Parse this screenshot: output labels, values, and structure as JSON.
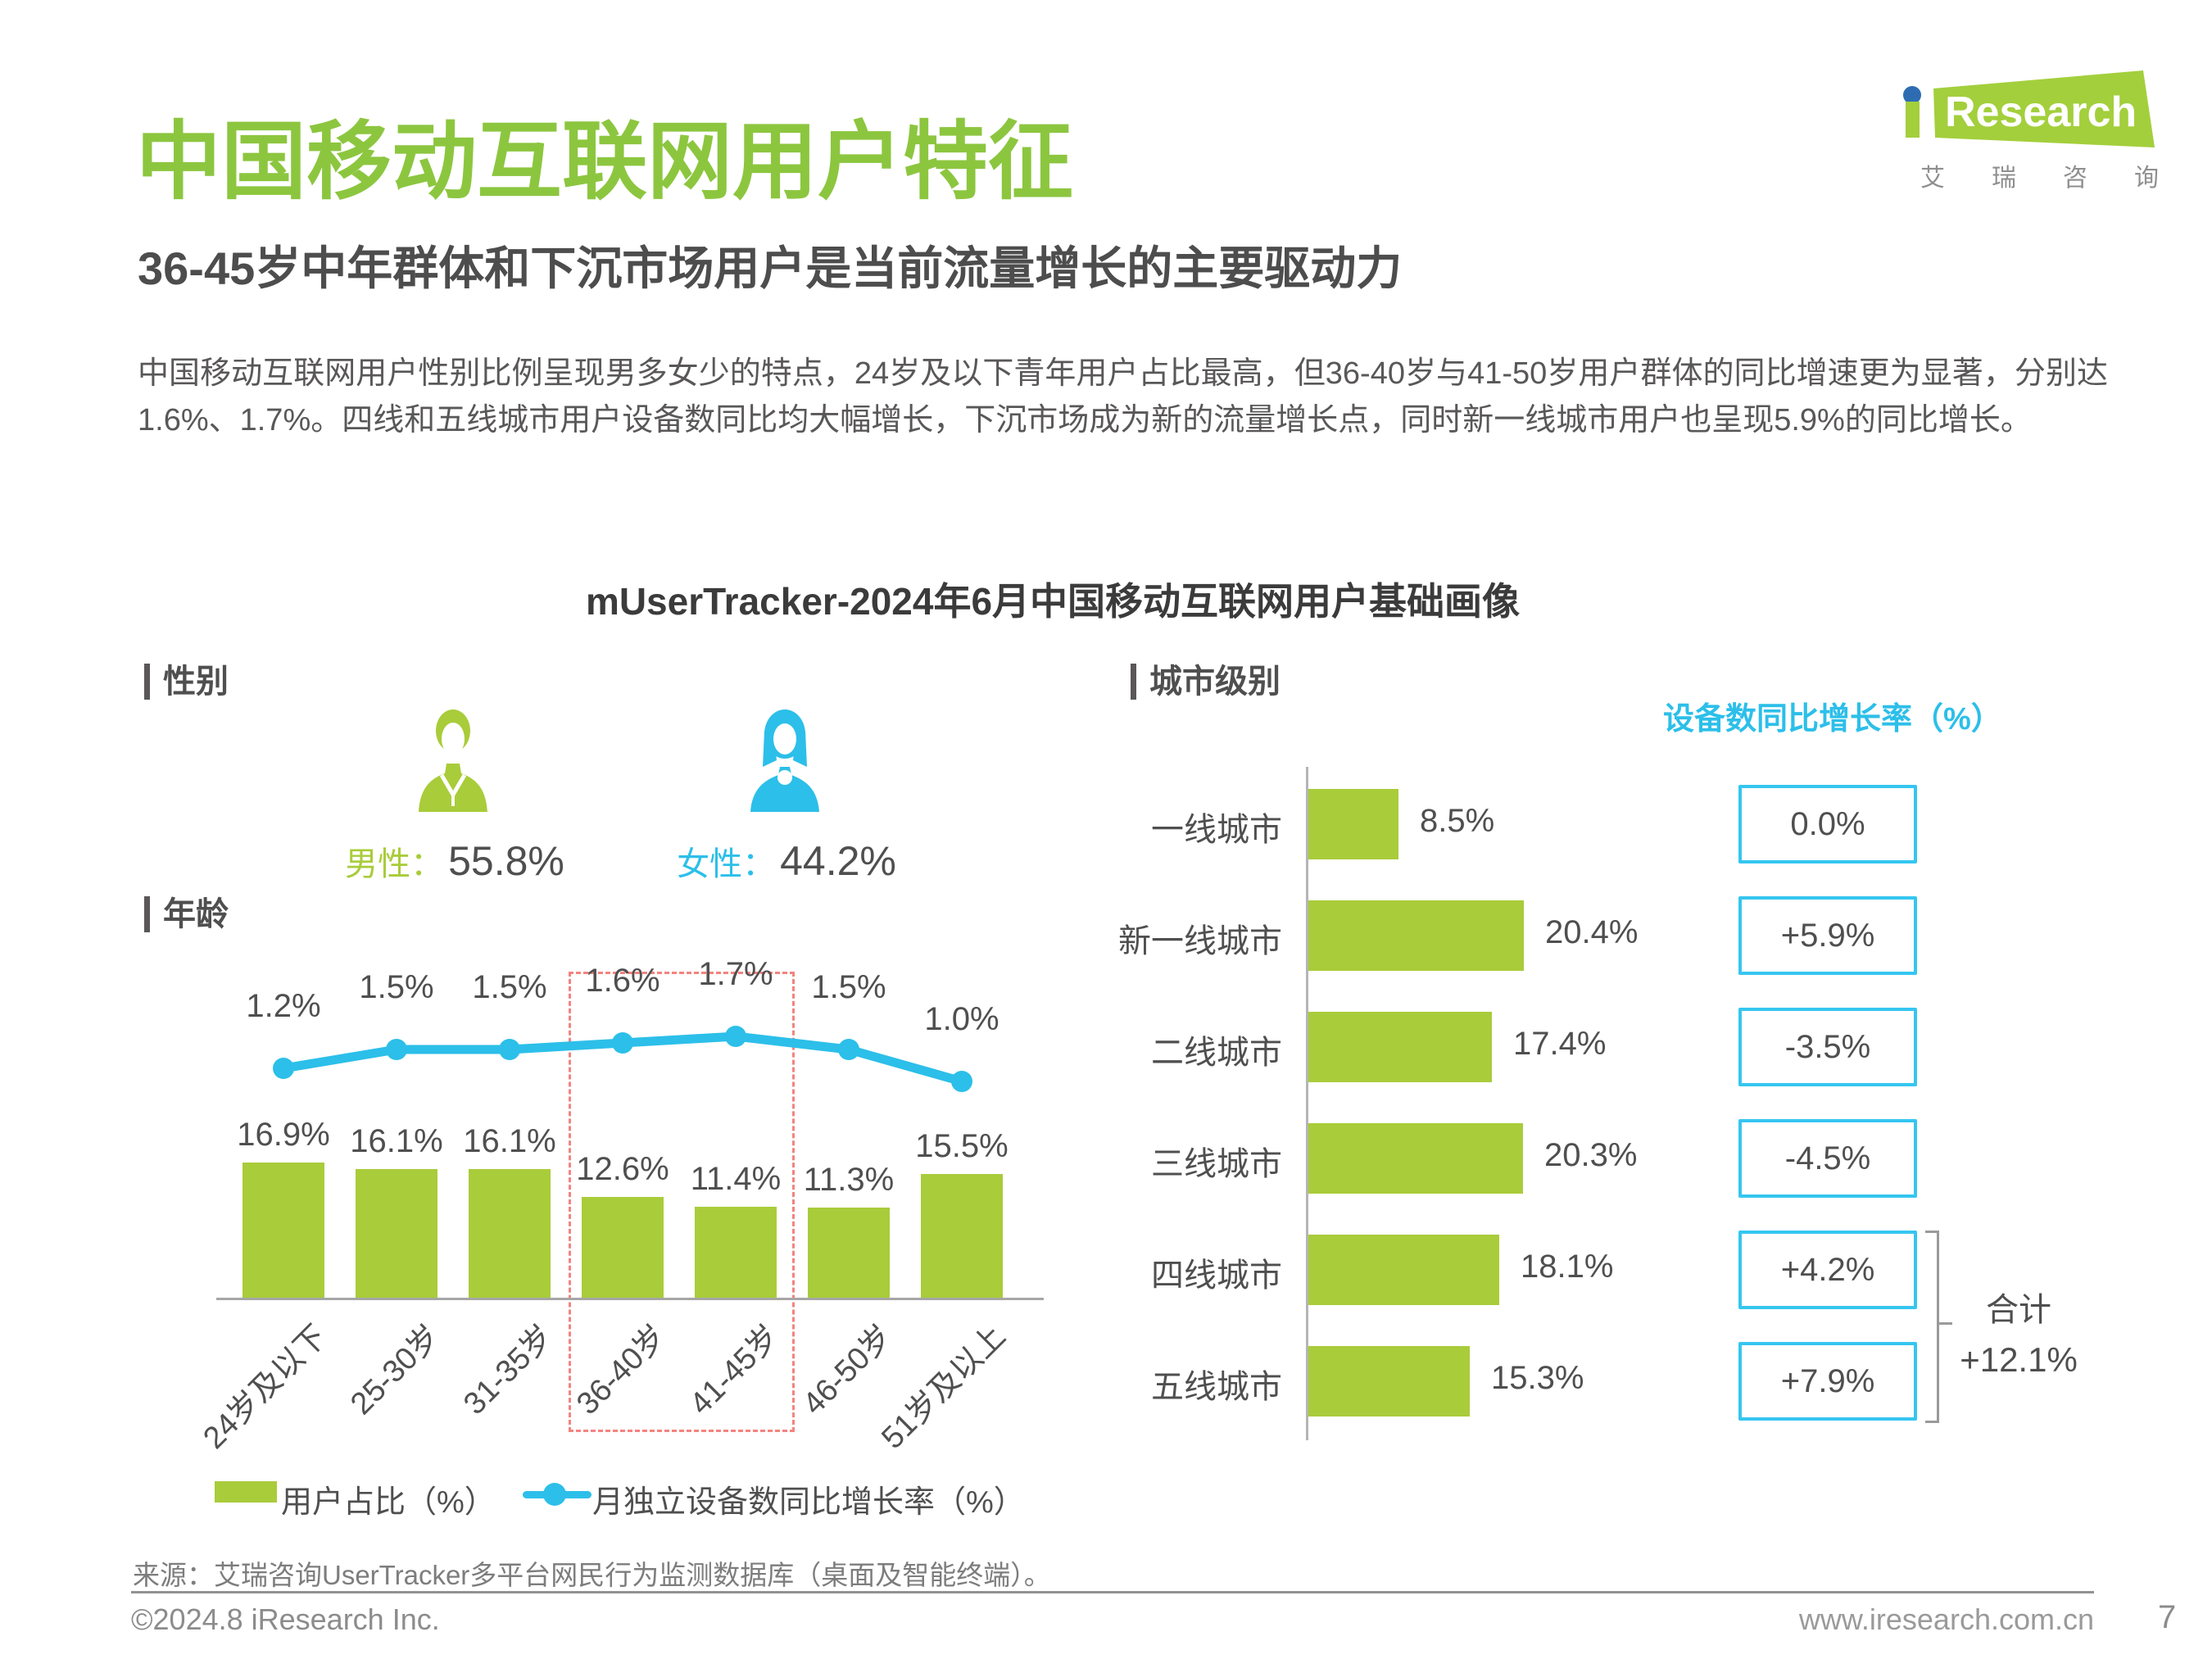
{
  "page": {
    "title": "中国移动互联网用户特征",
    "subtitle": "36-45岁中年群体和下沉市场用户是当前流量增长的主要驱动力",
    "paragraph": "中国移动互联网用户性别比例呈现男多女少的特点，24岁及以下青年用户占比最高，但36-40岁与41-50岁用户群体的同比增速更为显著，分别达1.6%、1.7%。四线和五线城市用户设备数同比均大幅增长，下沉市场成为新的流量增长点，同时新一线城市用户也呈现5.9%的同比增长。",
    "chart_title": "mUserTracker-2024年6月中国移动互联网用户基础画像"
  },
  "logo": {
    "brand": "Research",
    "cn": "艾瑞咨询"
  },
  "sections": {
    "gender": "性别",
    "age": "年龄",
    "city": "城市级别"
  },
  "gender": {
    "male_label": "男性：",
    "male_value": "55.8%",
    "female_label": "女性：",
    "female_value": "44.2%"
  },
  "colors": {
    "title_green": "#8cc63f",
    "bar_green": "#a9cc3a",
    "cyan": "#2cbfe9",
    "box_border_cyan": "#35c6f0",
    "logo_green": "#a3cf3c",
    "logo_dot_blue": "#2e6cb2",
    "dashed_pink": "#f4837e",
    "text_dark": "#4f4f4f"
  },
  "footer": {
    "source": "来源：艾瑞咨询UserTracker多平台网民行为监测数据库（桌面及智能终端）。",
    "copyright": "©2024.8 iResearch Inc.",
    "website": "www.iresearch.com.cn",
    "page_number": "7"
  },
  "chart_data": [
    {
      "id": "age-combo-chart",
      "type": "bar",
      "combo_with_line": true,
      "title": "年龄",
      "categories": [
        "24岁及以下",
        "25-30岁",
        "31-35岁",
        "36-40岁",
        "41-45岁",
        "46-50岁",
        "51岁及以上"
      ],
      "series": [
        {
          "name": "用户占比（%）",
          "type": "bar",
          "values": [
            16.9,
            16.1,
            16.1,
            12.6,
            11.4,
            11.3,
            15.5
          ]
        },
        {
          "name": "月独立设备数同比增长率（%）",
          "type": "line",
          "values": [
            1.2,
            1.5,
            1.5,
            1.6,
            1.7,
            1.5,
            1.0
          ]
        }
      ],
      "highlight": {
        "style": "dashed-box",
        "categories": [
          "36-40岁",
          "41-45岁"
        ]
      },
      "legend_position": "bottom",
      "grid": false
    },
    {
      "id": "city-tier-chart",
      "type": "bar",
      "orientation": "horizontal",
      "title": "城市级别",
      "categories": [
        "一线城市",
        "新一线城市",
        "二线城市",
        "三线城市",
        "四线城市",
        "五线城市"
      ],
      "values": [
        8.5,
        20.4,
        17.4,
        20.3,
        18.1,
        15.3
      ],
      "value_unit": "%",
      "secondary_column": {
        "header": "设备数同比增长率（%）",
        "values": [
          "0.0%",
          "+5.9%",
          "-3.5%",
          "-4.5%",
          "+4.2%",
          "+7.9%"
        ]
      },
      "total": {
        "label": "合计",
        "value": "+12.1%",
        "applies_to": [
          "四线城市",
          "五线城市"
        ]
      },
      "grid": false
    }
  ]
}
